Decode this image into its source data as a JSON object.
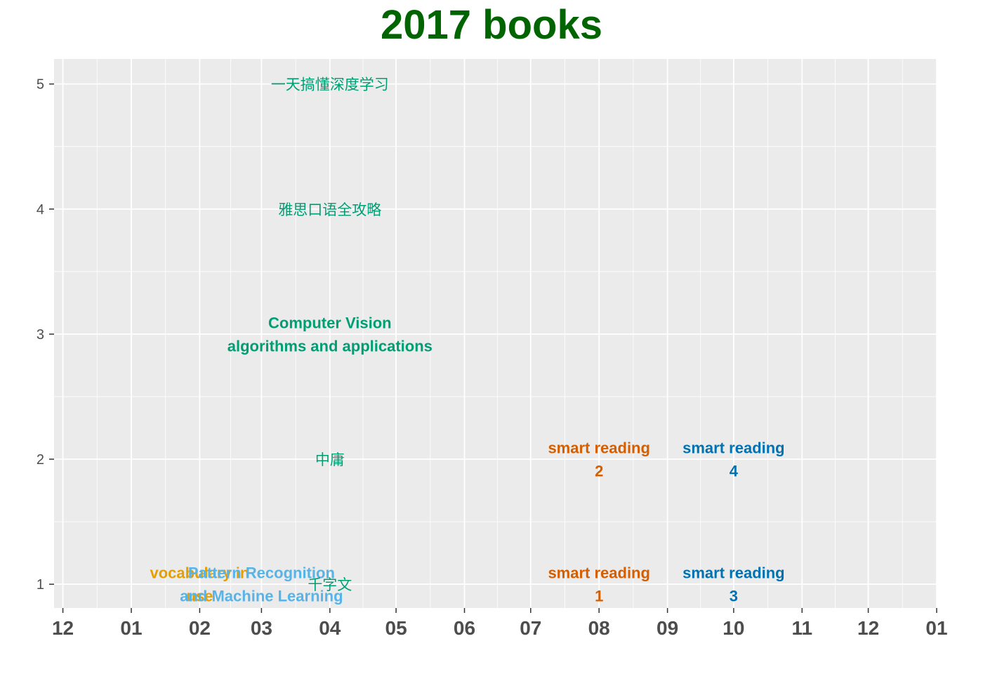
{
  "chart_data": {
    "type": "scatter",
    "title": "2017 books",
    "xlabel": "",
    "ylabel": "",
    "x_axis": {
      "type": "date",
      "range": [
        "2016-11-27",
        "2018-01-01"
      ],
      "ticks": [
        {
          "date": "2016-12-01",
          "label": "12"
        },
        {
          "date": "2017-01-01",
          "label": "01"
        },
        {
          "date": "2017-02-01",
          "label": "02"
        },
        {
          "date": "2017-03-01",
          "label": "03"
        },
        {
          "date": "2017-04-01",
          "label": "04"
        },
        {
          "date": "2017-05-01",
          "label": "05"
        },
        {
          "date": "2017-06-01",
          "label": "06"
        },
        {
          "date": "2017-07-01",
          "label": "07"
        },
        {
          "date": "2017-08-01",
          "label": "08"
        },
        {
          "date": "2017-09-01",
          "label": "09"
        },
        {
          "date": "2017-10-01",
          "label": "10"
        },
        {
          "date": "2017-11-01",
          "label": "11"
        },
        {
          "date": "2017-12-01",
          "label": "12"
        },
        {
          "date": "2018-01-01",
          "label": "01"
        }
      ]
    },
    "y_axis": {
      "range": [
        0.81,
        5.2
      ],
      "ticks": [
        1,
        2,
        3,
        4,
        5
      ]
    },
    "grid": true,
    "legend": "none",
    "points": [
      {
        "lines": [
          "vocabulary in",
          "use"
        ],
        "date": "2017-02-01",
        "y": 1,
        "color": "#E69F00",
        "script": "latin"
      },
      {
        "lines": [
          "Pattern Recognition",
          "and Machine Learning"
        ],
        "date": "2017-03-01",
        "y": 1,
        "color": "#56B4E9",
        "script": "latin"
      },
      {
        "lines": [
          "千字文"
        ],
        "date": "2017-04-01",
        "y": 1,
        "color": "#009E73",
        "script": "cjk"
      },
      {
        "lines": [
          "中庸"
        ],
        "date": "2017-04-01",
        "y": 2,
        "color": "#009E73",
        "script": "cjk"
      },
      {
        "lines": [
          "Computer Vision",
          "algorithms and applications"
        ],
        "date": "2017-04-01",
        "y": 3,
        "color": "#009E73",
        "script": "latin"
      },
      {
        "lines": [
          "雅思口语全攻略"
        ],
        "date": "2017-04-01",
        "y": 4,
        "color": "#009E73",
        "script": "cjk"
      },
      {
        "lines": [
          "一天搞懂深度学习"
        ],
        "date": "2017-04-01",
        "y": 5,
        "color": "#009E73",
        "script": "cjk"
      },
      {
        "lines": [
          "smart reading",
          "1"
        ],
        "date": "2017-08-01",
        "y": 1,
        "color": "#D55E00",
        "script": "latin"
      },
      {
        "lines": [
          "smart reading",
          "2"
        ],
        "date": "2017-08-01",
        "y": 2,
        "color": "#D55E00",
        "script": "latin"
      },
      {
        "lines": [
          "smart reading",
          "3"
        ],
        "date": "2017-10-01",
        "y": 1,
        "color": "#0072B2",
        "script": "latin"
      },
      {
        "lines": [
          "smart reading",
          "4"
        ],
        "date": "2017-10-01",
        "y": 2,
        "color": "#0072B2",
        "script": "latin"
      }
    ]
  },
  "colors": {
    "title": "#006400",
    "panel_background": "#EBEBEB",
    "grid_major": "#FFFFFF",
    "axis_text": "#4D4D4D"
  }
}
